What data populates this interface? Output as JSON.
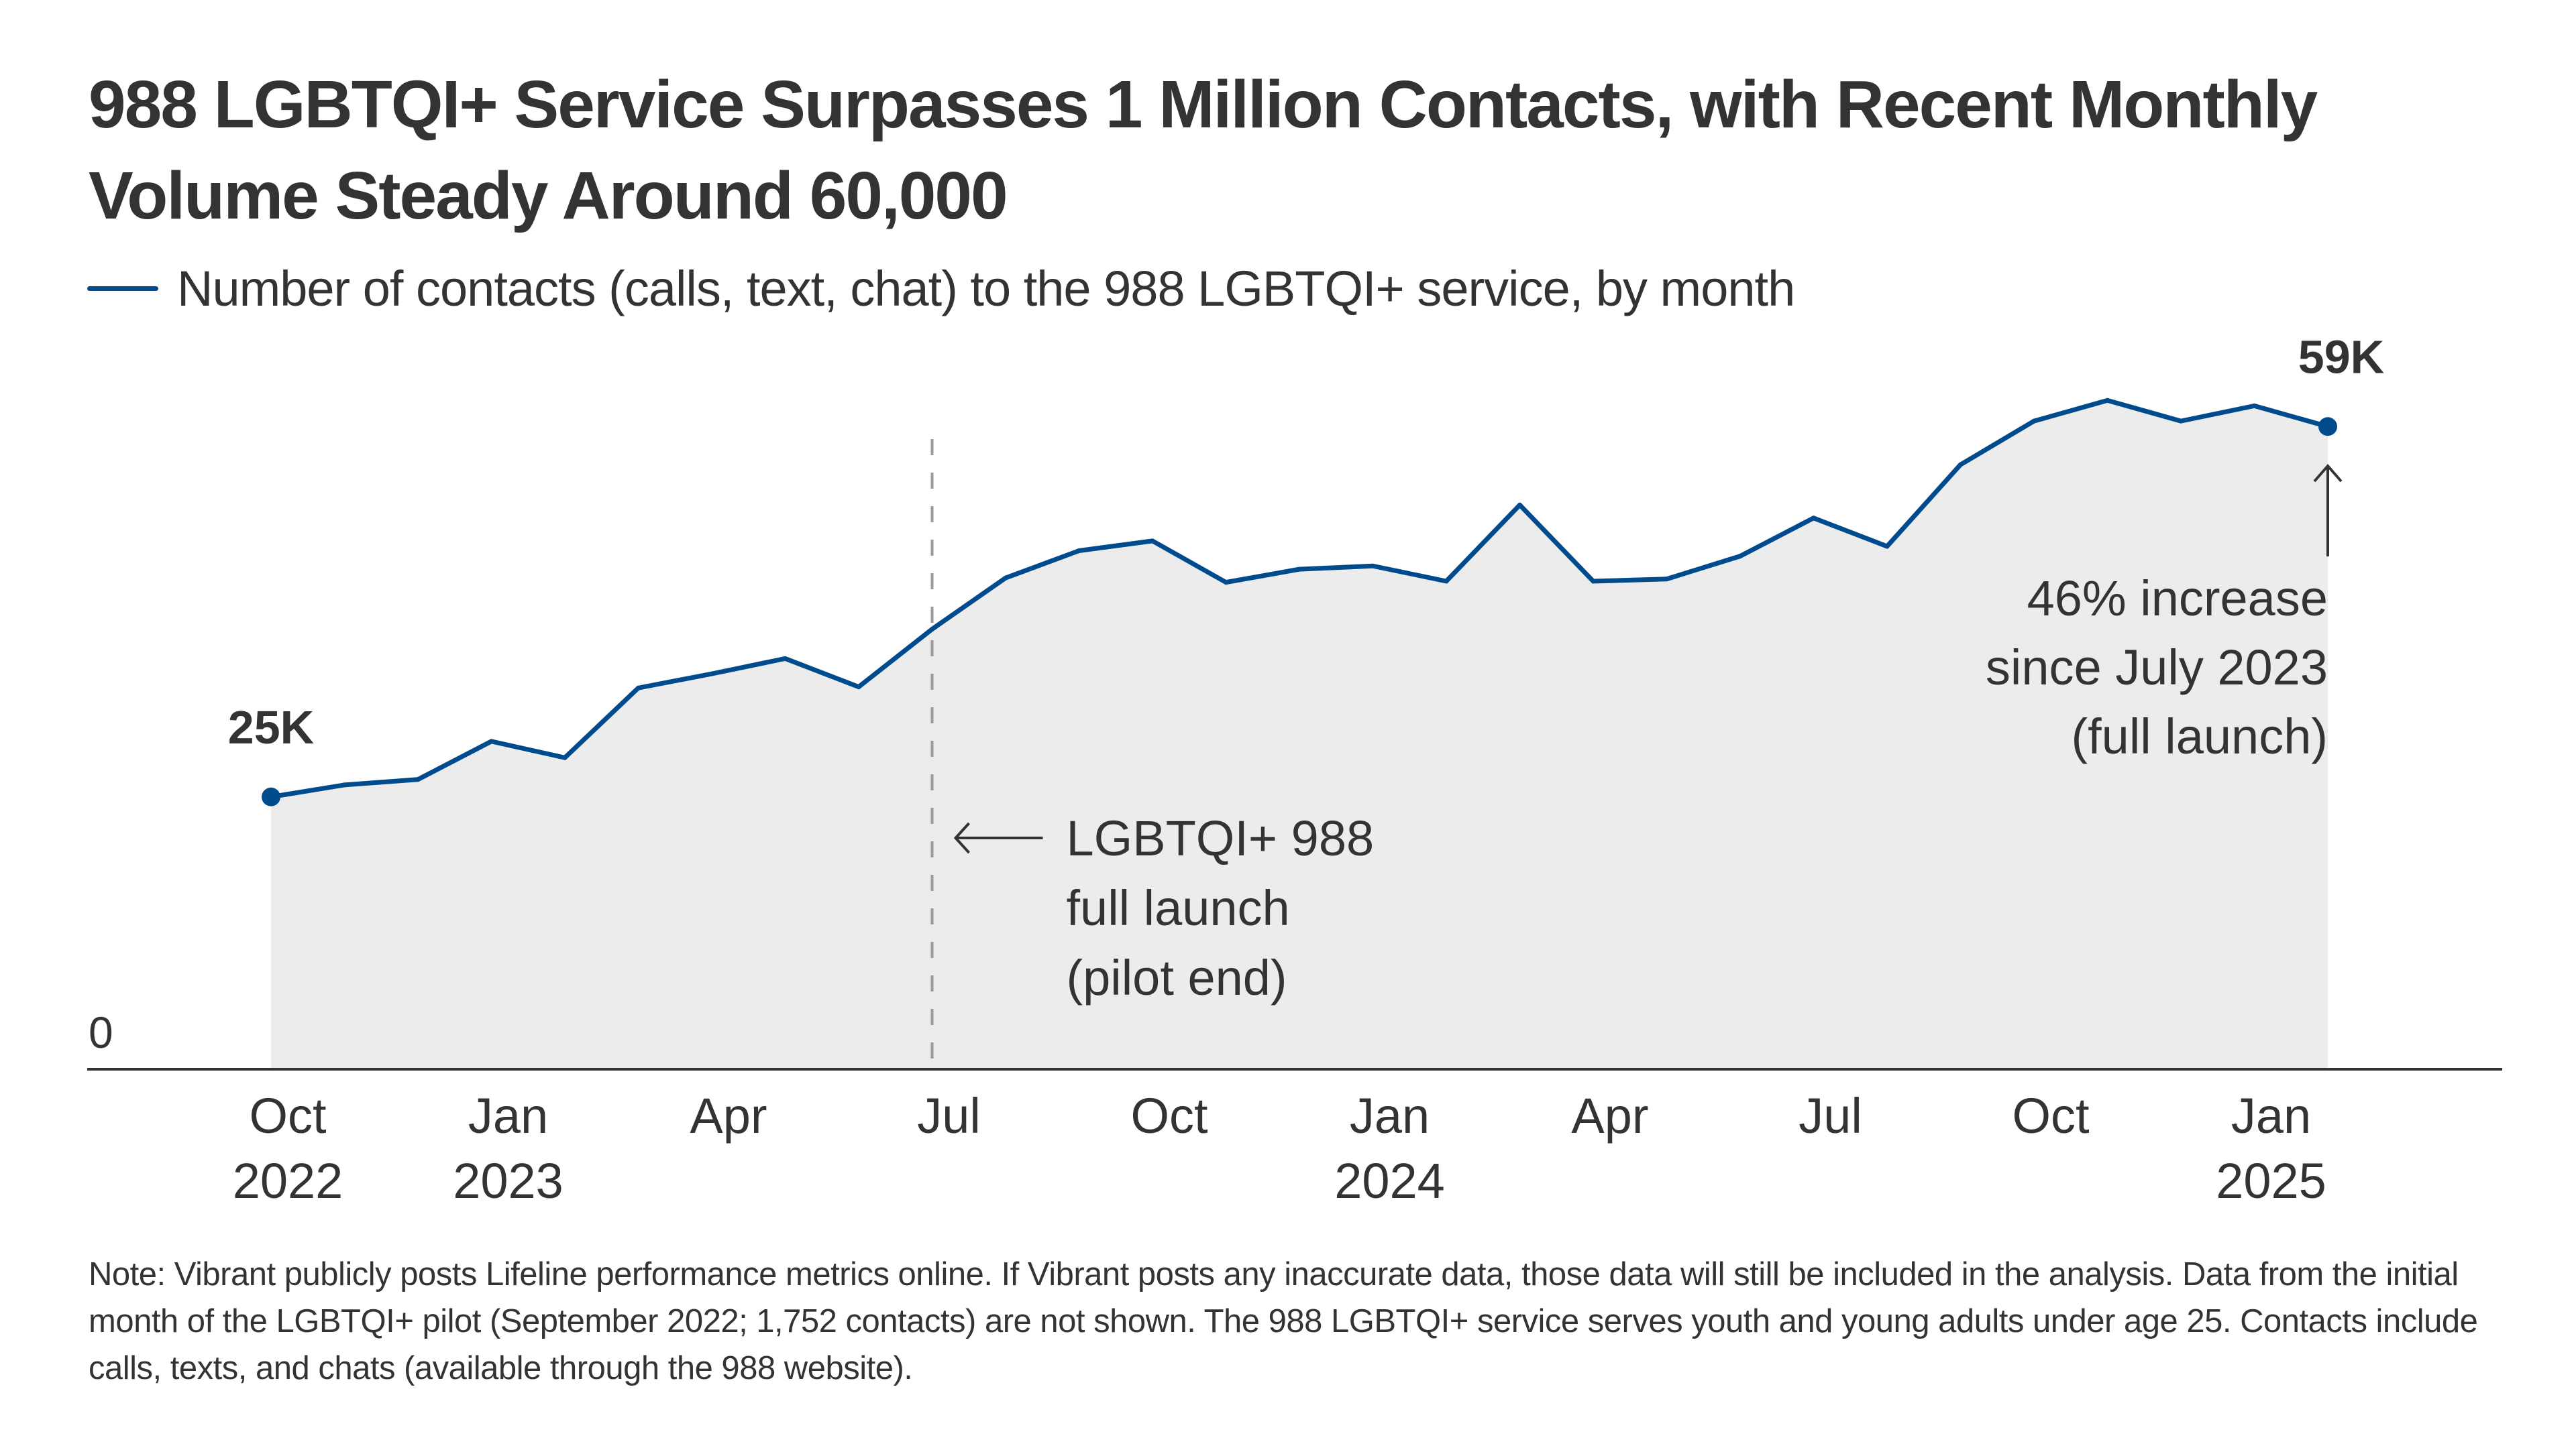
{
  "header": {
    "title": "988 LGBTQI+ Service Surpasses 1 Million Contacts, with Recent Monthly Volume Steady Around 60,000",
    "legend_label": "Number of contacts (calls, text, chat) to the 988 LGBTQI+ service, by month"
  },
  "colors": {
    "line": "#004b8d",
    "area": "#ececec",
    "text": "#333333",
    "reference_line": "#999999"
  },
  "chart_data": {
    "type": "area",
    "title": "988 LGBTQI+ Service Surpasses 1 Million Contacts, with Recent Monthly Volume Steady Around 60,000",
    "xlabel": "",
    "ylabel": "",
    "series": [
      {
        "name": "Number of contacts (calls, text, chat) to the 988 LGBTQI+ service, by month",
        "unit": "thousands",
        "x": [
          "2022-10",
          "2022-11",
          "2022-12",
          "2023-01",
          "2023-02",
          "2023-03",
          "2023-04",
          "2023-05",
          "2023-06",
          "2023-07",
          "2023-08",
          "2023-09",
          "2023-10",
          "2023-11",
          "2023-12",
          "2024-01",
          "2024-02",
          "2024-03",
          "2024-04",
          "2024-05",
          "2024-06",
          "2024-07",
          "2024-08",
          "2024-09",
          "2024-10",
          "2024-11",
          "2024-12",
          "2025-01",
          "2025-02"
        ],
        "values": [
          25,
          26.1,
          26.6,
          30.1,
          28.6,
          35.0,
          36.3,
          37.7,
          35.1,
          40.4,
          45.1,
          47.6,
          48.5,
          44.7,
          45.9,
          46.2,
          44.8,
          51.8,
          44.8,
          45.0,
          47.1,
          50.6,
          48.0,
          55.5,
          59.5,
          61.4,
          59.5,
          60.9,
          59.0
        ]
      }
    ],
    "ylim": [
      0,
      65
    ],
    "y_ticks": [
      {
        "value": 0,
        "label": "0"
      }
    ],
    "x_ticks": [
      {
        "x": "2022-10",
        "line1": "Oct",
        "line2": "2022"
      },
      {
        "x": "2023-01",
        "line1": "Jan",
        "line2": "2023"
      },
      {
        "x": "2023-04",
        "line1": "Apr",
        "line2": ""
      },
      {
        "x": "2023-07",
        "line1": "Jul",
        "line2": ""
      },
      {
        "x": "2023-10",
        "line1": "Oct",
        "line2": ""
      },
      {
        "x": "2024-01",
        "line1": "Jan",
        "line2": "2024"
      },
      {
        "x": "2024-04",
        "line1": "Apr",
        "line2": ""
      },
      {
        "x": "2024-07",
        "line1": "Jul",
        "line2": ""
      },
      {
        "x": "2024-10",
        "line1": "Oct",
        "line2": ""
      },
      {
        "x": "2025-01",
        "line1": "Jan",
        "line2": "2025"
      }
    ],
    "data_labels": [
      {
        "x": "2022-10",
        "label": "25K"
      },
      {
        "x": "2025-02",
        "label": "59K"
      }
    ],
    "annotations": [
      {
        "id": "launch",
        "x": "2023-07",
        "type": "vertical-dashed-line",
        "arrow": "left",
        "lines": [
          "LGBTQI+ 988",
          "full launch",
          "(pilot end)"
        ]
      },
      {
        "id": "increase",
        "x": "2025-02",
        "type": "arrow-up",
        "lines": [
          "46% increase",
          "since July 2023",
          "(full launch)"
        ]
      }
    ],
    "grid": false,
    "legend": "top-left"
  },
  "footer": {
    "note": "Note:  Vibrant publicly posts Lifeline performance metrics online. If Vibrant posts any inaccurate data, those data will still be included in the analysis. Data from the initial month of the LGBTQI+ pilot (September 2022; 1,752 contacts) are not shown. The 988 LGBTQI+ service serves youth and young adults under age 25. Contacts include calls, texts, and chats (available through the 988 website)."
  }
}
